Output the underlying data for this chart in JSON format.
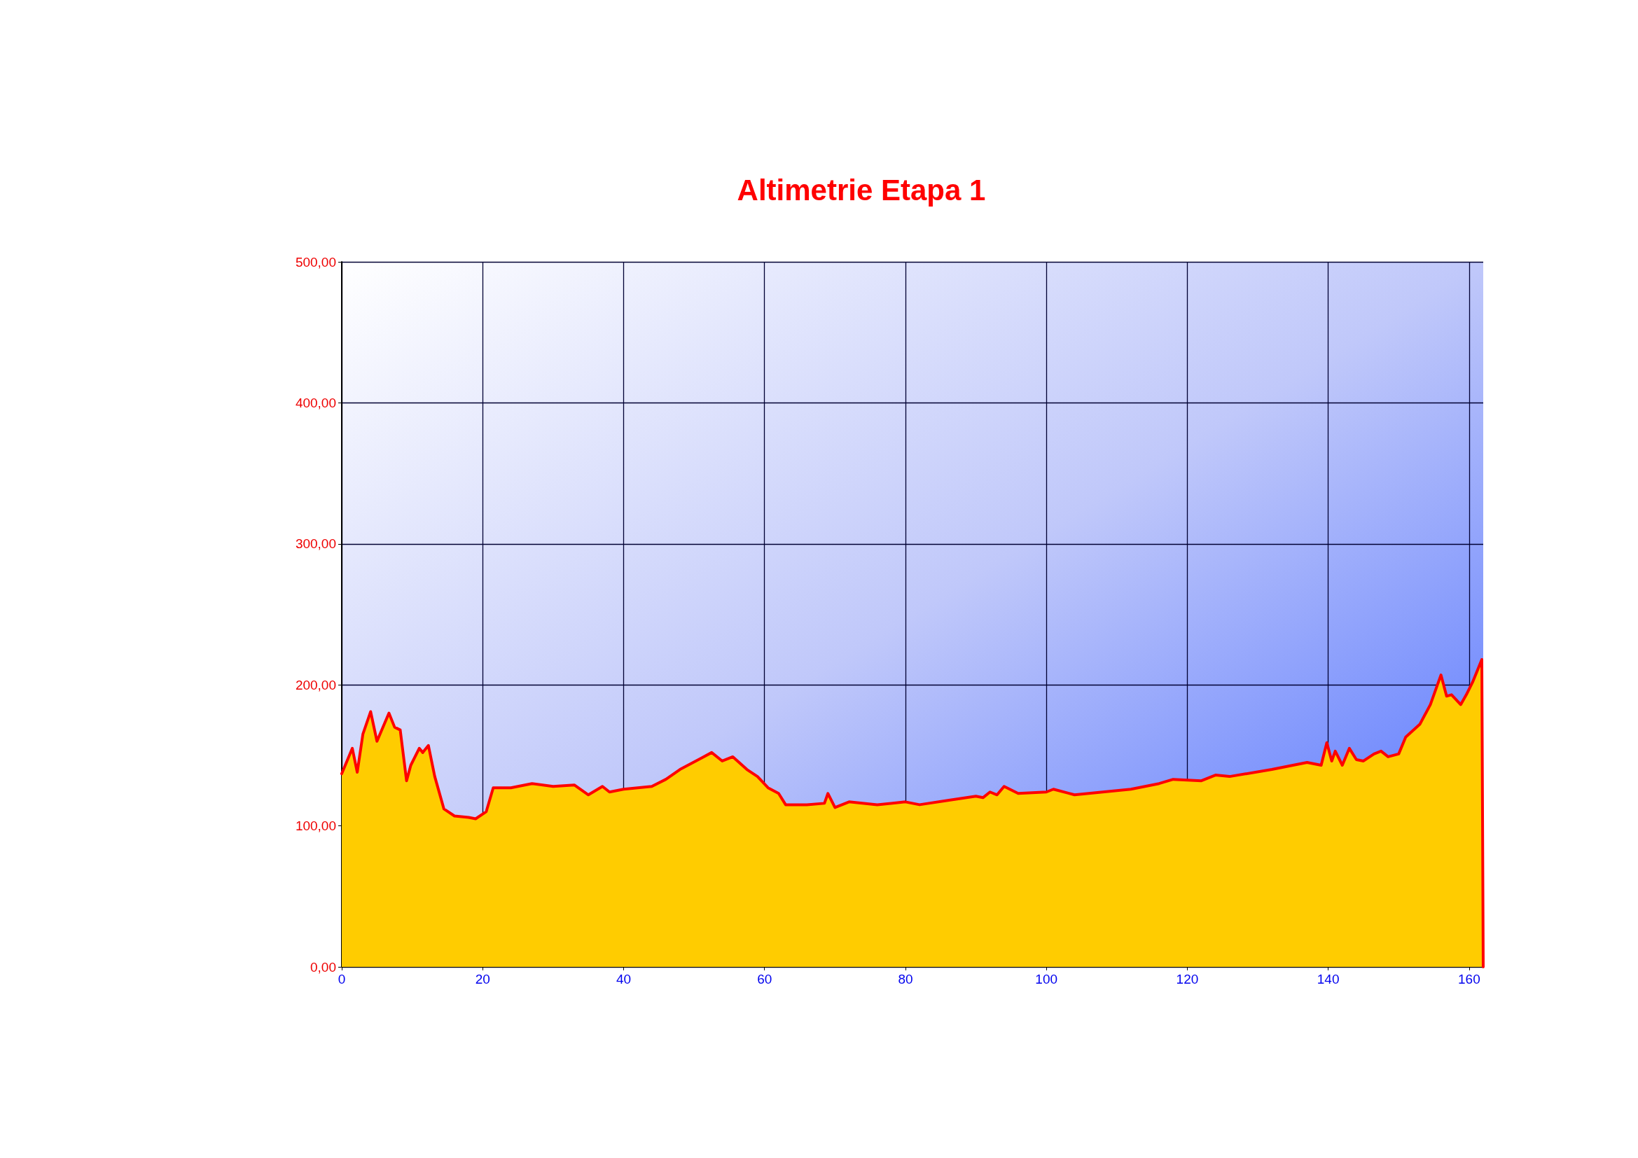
{
  "chart_data": {
    "type": "area",
    "title": "Altimetrie Etapa 1",
    "x": [
      0,
      1.5,
      2.2,
      3,
      4.1,
      5,
      6.7,
      7.5,
      8.3,
      9.2,
      9.8,
      11,
      11.5,
      12.3,
      13.2,
      14.5,
      16,
      18,
      19,
      20.5,
      21.5,
      24,
      27,
      30,
      33,
      35,
      37,
      38,
      40,
      44,
      46,
      48,
      51,
      52.5,
      54,
      55.5,
      57.5,
      59,
      60.5,
      62,
      63,
      66,
      68.5,
      69,
      70,
      72,
      76,
      80,
      82,
      86,
      90,
      91,
      92,
      93,
      94,
      96,
      100,
      101,
      104,
      108,
      112,
      116,
      118,
      122,
      124,
      126,
      132,
      135,
      137,
      139,
      139.8,
      140.5,
      141,
      142,
      143,
      144,
      145,
      146.5,
      147.5,
      148.5,
      150,
      151,
      153,
      154.5,
      155.5,
      156,
      156.8,
      157.5,
      158.8,
      159.6,
      160.5,
      161.8,
      162
    ],
    "series": [
      {
        "color": "#ff0000",
        "values": [
          137,
          155,
          138,
          165,
          181,
          160,
          180,
          170,
          168,
          132,
          143,
          155,
          152,
          157,
          135,
          112,
          107,
          106,
          105,
          110,
          127,
          127,
          130,
          128,
          129,
          122,
          128,
          124,
          126,
          128,
          133,
          140,
          148,
          152,
          146,
          149,
          140,
          135,
          127,
          123,
          115,
          115,
          116,
          123,
          113,
          117,
          115,
          117,
          115,
          118,
          121,
          120,
          124,
          122,
          128,
          123,
          124,
          126,
          122,
          124,
          126,
          130,
          133,
          132,
          136,
          135,
          140,
          143,
          145,
          143,
          159,
          146,
          153,
          143,
          155,
          147,
          146,
          151,
          153,
          149,
          151,
          163,
          172,
          186,
          200,
          207,
          192,
          193,
          186,
          193,
          202,
          218,
          0
        ]
      }
    ],
    "xlim": [
      0,
      162
    ],
    "xticks": [
      0,
      20,
      40,
      60,
      80,
      100,
      120,
      140,
      160
    ],
    "ylim": [
      0,
      500
    ],
    "yticks": [
      {
        "value": 0,
        "label": "0,00"
      },
      {
        "value": 100,
        "label": "100,00"
      },
      {
        "value": 200,
        "label": "200,00"
      },
      {
        "value": 300,
        "label": "300,00"
      },
      {
        "value": 400,
        "label": "400,00"
      },
      {
        "value": 500,
        "label": "500,00"
      }
    ],
    "grid": true,
    "marker": "none",
    "line_style": "solid"
  }
}
